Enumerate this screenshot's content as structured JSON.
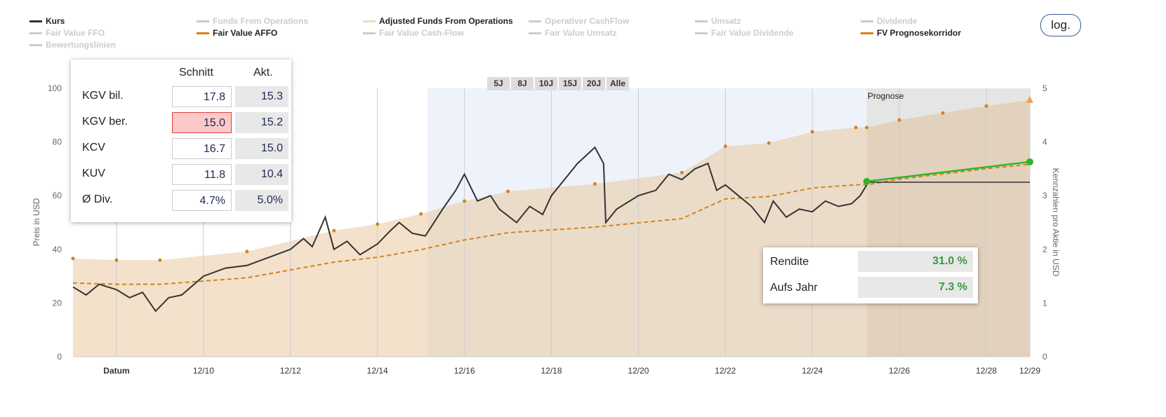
{
  "legend": [
    {
      "label": "Kurs",
      "active": true,
      "color": "#333333"
    },
    {
      "label": "Fair Value FFO",
      "active": false
    },
    {
      "label": "Bewertungslinien",
      "active": false
    },
    {
      "label": "Funds From Operations",
      "active": false
    },
    {
      "label": "Fair Value AFFO",
      "active": true,
      "color": "#d4821e"
    },
    {
      "label": "Adjusted Funds From Operations",
      "active": true,
      "color": "#f0dcc0"
    },
    {
      "label": "Fair Value Cash-Flow",
      "active": false
    },
    {
      "label": "Operativer CashFlow",
      "active": false
    },
    {
      "label": "Fair Value Umsatz",
      "active": false
    },
    {
      "label": "Umsatz",
      "active": false
    },
    {
      "label": "Fair Value Dividende",
      "active": false
    },
    {
      "label": "Dividende",
      "active": false
    },
    {
      "label": "FV Prognosekorridor",
      "active": true,
      "color": "#d4821e"
    }
  ],
  "log_button": "log.",
  "range_buttons": [
    "5J",
    "8J",
    "10J",
    "15J",
    "20J",
    "Alle"
  ],
  "prognose_label": "Prognose",
  "valuation_table": {
    "headers": [
      "Schnitt",
      "Akt."
    ],
    "rows": [
      {
        "label": "KGV bil.",
        "avg": "17.8",
        "cur": "15.3"
      },
      {
        "label": "KGV ber.",
        "avg": "15.0",
        "cur": "15.2",
        "highlight": true
      },
      {
        "label": "KCV",
        "avg": "16.7",
        "cur": "15.0"
      },
      {
        "label": "KUV",
        "avg": "11.8",
        "cur": "10.4"
      },
      {
        "label": "Ø Div.",
        "avg": "4.7%",
        "cur": "5.0%"
      }
    ]
  },
  "return_box": {
    "rows": [
      {
        "label": "Rendite",
        "value": "31.0 %"
      },
      {
        "label": "Aufs Jahr",
        "value": "7.3 %"
      }
    ]
  },
  "chart_data": {
    "type": "line",
    "ylabel": "Preis in USD",
    "y2label": "Kennzahlen pro Aktie in USD",
    "xlabel": "Datum",
    "ylim": [
      0,
      100
    ],
    "y2lim": [
      0,
      5
    ],
    "xlim": [
      2007.0,
      2029.0
    ],
    "yticks": [
      "0",
      "20",
      "40",
      "60",
      "80",
      "100"
    ],
    "y2ticks": [
      "0",
      "1",
      "2",
      "3",
      "4",
      "5"
    ],
    "xticks": [
      {
        "x": 2008,
        "label": "Datum"
      },
      {
        "x": 2010,
        "label": "12/10"
      },
      {
        "x": 2012,
        "label": "12/12"
      },
      {
        "x": 2014,
        "label": "12/14"
      },
      {
        "x": 2016,
        "label": "12/16"
      },
      {
        "x": 2018,
        "label": "12/18"
      },
      {
        "x": 2020,
        "label": "12/20"
      },
      {
        "x": 2022,
        "label": "12/22"
      },
      {
        "x": 2024,
        "label": "12/24"
      },
      {
        "x": 2026,
        "label": "12/26"
      },
      {
        "x": 2028,
        "label": "12/28"
      },
      {
        "x": 2029,
        "label": "12/29"
      }
    ],
    "highlight_range": [
      2015.15,
      2025.25
    ],
    "forecast_start": 2025.25,
    "affo_multiple": 15,
    "affo": {
      "x": [
        2007.0,
        2008.0,
        2009.0,
        2011.0,
        2013.0,
        2014.0,
        2015.0,
        2016.0,
        2017.0,
        2019.0,
        2021.0,
        2022.0,
        2023.0,
        2024.0,
        2025.0,
        2025.25,
        2026.0,
        2027.0,
        2028.0,
        2029.0
      ],
      "y": [
        1.83,
        1.8,
        1.8,
        1.96,
        2.35,
        2.47,
        2.66,
        2.9,
        3.08,
        3.22,
        3.43,
        3.92,
        3.98,
        4.19,
        4.27,
        4.27,
        4.41,
        4.54,
        4.67,
        4.78
      ]
    },
    "kurs": {
      "x": [
        2007.0,
        2007.3,
        2007.6,
        2008.0,
        2008.3,
        2008.6,
        2008.9,
        2009.2,
        2009.5,
        2010.0,
        2010.5,
        2011.0,
        2011.5,
        2012.0,
        2012.3,
        2012.5,
        2012.8,
        2013.0,
        2013.3,
        2013.6,
        2014.0,
        2014.3,
        2014.5,
        2014.8,
        2015.1,
        2015.5,
        2015.8,
        2016.0,
        2016.3,
        2016.6,
        2016.8,
        2017.2,
        2017.5,
        2017.8,
        2018.0,
        2018.3,
        2018.6,
        2018.8,
        2019.0,
        2019.2,
        2019.25,
        2019.5,
        2019.8,
        2020.0,
        2020.4,
        2020.7,
        2021.0,
        2021.3,
        2021.6,
        2021.8,
        2022.0,
        2022.3,
        2022.6,
        2022.9,
        2023.1,
        2023.4,
        2023.7,
        2024.0,
        2024.3,
        2024.6,
        2024.9,
        2025.1,
        2025.25
      ],
      "y": [
        26,
        23,
        27,
        25,
        22,
        24,
        17,
        22,
        23,
        30,
        33,
        34,
        37,
        40,
        44,
        41,
        52,
        40,
        43,
        38,
        42,
        47,
        50,
        46,
        45,
        55,
        62,
        68,
        58,
        60,
        55,
        50,
        56,
        53,
        60,
        66,
        72,
        75,
        78,
        72,
        50,
        55,
        58,
        60,
        62,
        68,
        66,
        70,
        72,
        62,
        64,
        60,
        56,
        50,
        58,
        52,
        55,
        54,
        58,
        56,
        57,
        60,
        64
      ]
    },
    "kurs_flat": {
      "x": [
        2025.25,
        2029.0
      ],
      "y": [
        65,
        65
      ]
    },
    "forecast_line": {
      "x": [
        2025.25,
        2029.0
      ],
      "y": [
        65.3,
        72.6
      ]
    }
  }
}
